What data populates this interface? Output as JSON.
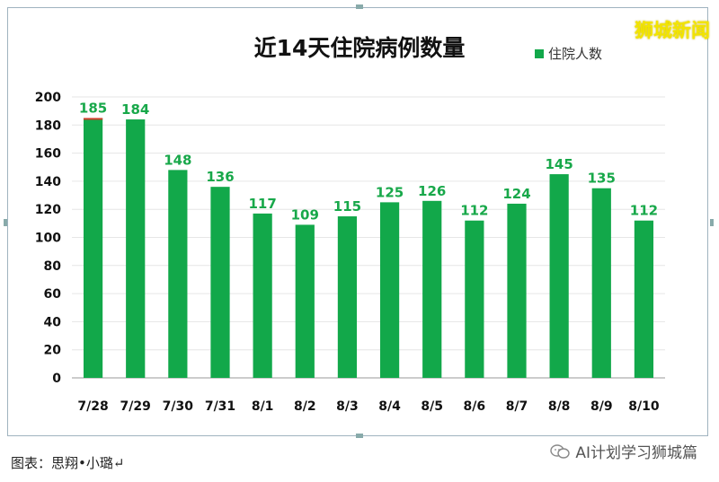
{
  "watermark_top": "狮城新闻",
  "watermark_bottom": "AI计划学习狮城篇",
  "caption": "图表：思翔•小璐↵",
  "colors": {
    "bar": "#12a84a",
    "label": "#18a84a",
    "accent_top": "#d23a2a",
    "title": "#111111"
  },
  "chart_data": {
    "type": "bar",
    "title": "近14天住院病例数量",
    "legend": {
      "label": "住院人数",
      "position": "top-right"
    },
    "categories": [
      "7/28",
      "7/29",
      "7/30",
      "7/31",
      "8/1",
      "8/2",
      "8/3",
      "8/4",
      "8/5",
      "8/6",
      "8/7",
      "8/8",
      "8/9",
      "8/10"
    ],
    "values": [
      185,
      184,
      148,
      136,
      117,
      109,
      115,
      125,
      126,
      112,
      124,
      145,
      135,
      112
    ],
    "data_labels": [
      "185",
      "184",
      "148",
      "136",
      "117",
      "109",
      "115",
      "125",
      "126",
      "112",
      "124",
      "145",
      "135",
      "112"
    ],
    "ylim": [
      0,
      200
    ],
    "yticks": [
      "0",
      "20",
      "40",
      "60",
      "80",
      "100",
      "120",
      "140",
      "160",
      "180",
      "200"
    ],
    "xlabel": "",
    "ylabel": "",
    "grid": true
  }
}
